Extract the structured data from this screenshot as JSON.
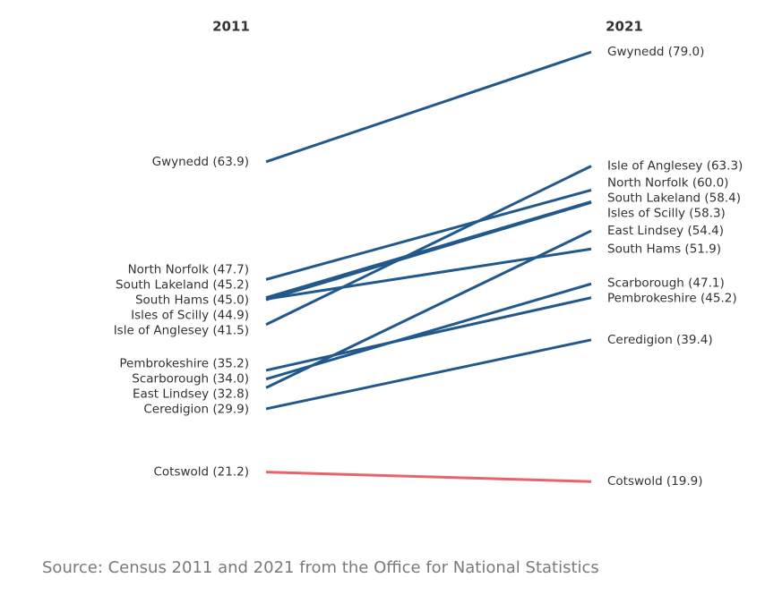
{
  "chart_data": {
    "type": "slope",
    "x": [
      "2011",
      "2021"
    ],
    "ylim": [
      15,
      80
    ],
    "series": [
      {
        "color": "#22598c",
        "values": [
          63.9,
          79.0
        ],
        "value_labels": [
          "Gwynedd (63.9)",
          "Gwynedd (79.0)"
        ]
      },
      {
        "color": "#22598c",
        "values": [
          41.5,
          63.3
        ],
        "value_labels": [
          "Isle of Anglesey (41.5)",
          "Isle of Anglesey (63.3)"
        ]
      },
      {
        "color": "#22598c",
        "values": [
          47.7,
          60.0
        ],
        "value_labels": [
          "North Norfolk (47.7)",
          "North Norfolk (60.0)"
        ]
      },
      {
        "color": "#22598c",
        "values": [
          45.2,
          58.4
        ],
        "value_labels": [
          "South Lakeland (45.2)",
          "South Lakeland (58.4)"
        ]
      },
      {
        "color": "#22598c",
        "values": [
          44.9,
          58.3
        ],
        "value_labels": [
          "Isles of Scilly (44.9)",
          "Isles of Scilly (58.3)"
        ]
      },
      {
        "color": "#22598c",
        "values": [
          32.8,
          54.4
        ],
        "value_labels": [
          "East Lindsey (32.8)",
          "East Lindsey (54.4)"
        ]
      },
      {
        "color": "#22598c",
        "values": [
          45.0,
          51.9
        ],
        "value_labels": [
          "South Hams (45.0)",
          "South Hams (51.9)"
        ]
      },
      {
        "color": "#22598c",
        "values": [
          34.0,
          47.1
        ],
        "value_labels": [
          "Scarborough (34.0)",
          "Scarborough (47.1)"
        ]
      },
      {
        "color": "#22598c",
        "values": [
          35.2,
          45.2
        ],
        "value_labels": [
          "Pembrokeshire (35.2)",
          "Pembrokeshire (45.2)"
        ]
      },
      {
        "color": "#22598c",
        "values": [
          29.9,
          39.4
        ],
        "value_labels": [
          "Ceredigion (29.9)",
          "Ceredigion (39.4)"
        ]
      },
      {
        "color": "#e8636a",
        "values": [
          21.2,
          19.9
        ],
        "value_labels": [
          "Cotswold (21.2)",
          "Cotswold (19.9)"
        ]
      }
    ],
    "source": "Source: Census 2011 and 2021 from the Office for National Statistics"
  }
}
